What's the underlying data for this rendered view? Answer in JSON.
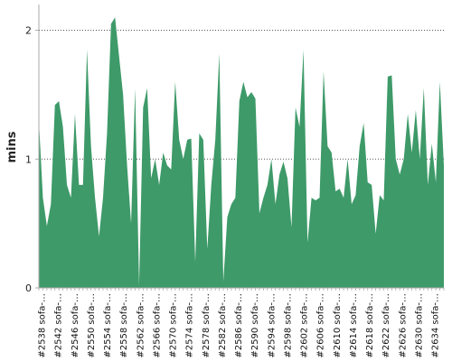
{
  "chart_data": {
    "type": "area",
    "ylabel": "mins",
    "ylim": [
      0,
      2.2
    ],
    "yticks": [
      0,
      1,
      2
    ],
    "grid": "horizontal-dotted",
    "colors": {
      "fill": "#3e9a69",
      "grid": "#555555",
      "axis": "#aaaaaa"
    },
    "xtick_labels": [
      "#2538 sofa-…",
      "#2542 sofa-…",
      "#2546 sofa-…",
      "#2550 sofa-…",
      "#2554 sofa-…",
      "#2558 sofa-…",
      "#2562 sofa-…",
      "#2566 sofa-…",
      "#2570 sofa-…",
      "#2574 sofa-…",
      "#2578 sofa-…",
      "#2582 sofa-…",
      "#2586 sofa-…",
      "#2590 sofa-…",
      "#2594 sofa-…",
      "#2598 sofa-…",
      "#2602 sofa-…",
      "#2606 sofa-…",
      "#2610 sofa-…",
      "#2614 sofa-…",
      "#2618 sofa-…",
      "#2622 sofa-…",
      "#2626 sofa-…",
      "#2630 sofa-…",
      "#2634 sofa-…"
    ],
    "values": [
      1.3,
      0.7,
      0.48,
      0.65,
      1.42,
      1.45,
      1.25,
      0.8,
      0.7,
      1.35,
      0.8,
      0.8,
      1.85,
      1.1,
      0.7,
      0.4,
      0.7,
      1.2,
      2.05,
      2.1,
      1.8,
      1.5,
      0.95,
      0.5,
      1.55,
      0.02,
      1.4,
      1.55,
      0.85,
      1.0,
      0.8,
      1.05,
      0.95,
      0.92,
      1.6,
      1.15,
      1.0,
      1.15,
      1.16,
      0.2,
      1.2,
      1.15,
      0.3,
      0.8,
      1.15,
      1.82,
      0.05,
      0.55,
      0.65,
      0.7,
      1.45,
      1.6,
      1.48,
      1.52,
      1.47,
      0.58,
      0.7,
      0.8,
      1.0,
      0.65,
      0.88,
      0.98,
      0.85,
      0.47,
      1.4,
      1.25,
      1.85,
      0.35,
      0.7,
      0.68,
      0.7,
      1.68,
      1.1,
      1.05,
      0.75,
      0.77,
      0.7,
      1.0,
      0.65,
      0.72,
      1.1,
      1.28,
      0.82,
      0.8,
      0.42,
      0.72,
      0.68,
      1.64,
      1.65,
      1.0,
      0.88,
      1.0,
      1.35,
      1.05,
      1.38,
      1.0,
      1.55,
      0.8,
      1.12,
      0.82,
      1.6,
      0.95
    ]
  }
}
